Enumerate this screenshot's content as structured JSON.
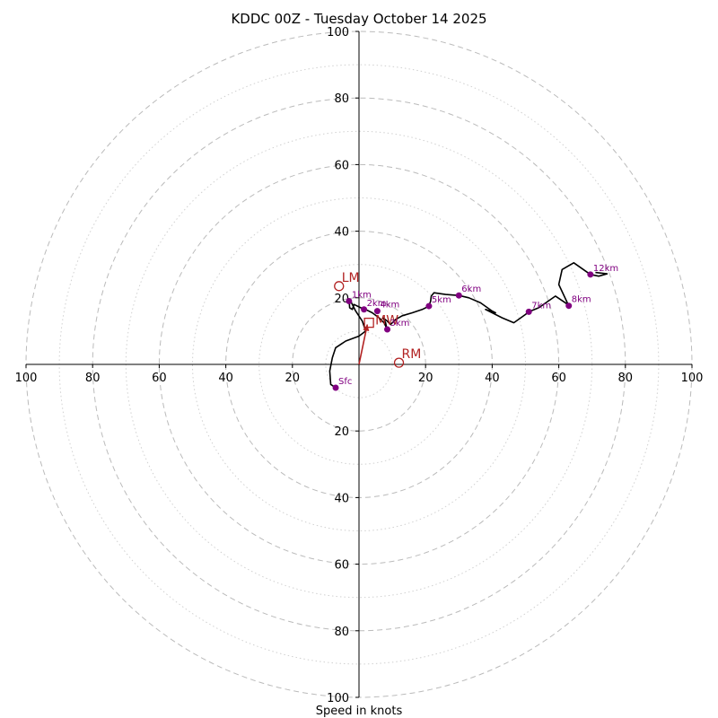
{
  "chart_data": {
    "type": "hodograph",
    "title": "KDDC 00Z - Tuesday October 14 2025",
    "xlabel": "Speed in knots",
    "range": 100,
    "major_rings": [
      20,
      40,
      60,
      80,
      100
    ],
    "minor_rings": [
      10,
      30,
      50,
      70,
      90
    ],
    "x_ticks": [
      {
        "v": -100,
        "label": "100"
      },
      {
        "v": -80,
        "label": "80"
      },
      {
        "v": -60,
        "label": "60"
      },
      {
        "v": -40,
        "label": "40"
      },
      {
        "v": -20,
        "label": "20"
      },
      {
        "v": 20,
        "label": "20"
      },
      {
        "v": 40,
        "label": "40"
      },
      {
        "v": 60,
        "label": "60"
      },
      {
        "v": 80,
        "label": "80"
      },
      {
        "v": 100,
        "label": "100"
      }
    ],
    "y_ticks": [
      {
        "v": 100,
        "label": "100"
      },
      {
        "v": 80,
        "label": "80"
      },
      {
        "v": 60,
        "label": "60"
      },
      {
        "v": 40,
        "label": "40"
      },
      {
        "v": 20,
        "label": "20"
      },
      {
        "v": -20,
        "label": "20"
      },
      {
        "v": -40,
        "label": "40"
      },
      {
        "v": -60,
        "label": "60"
      },
      {
        "v": -80,
        "label": "80"
      },
      {
        "v": -100,
        "label": "100"
      }
    ],
    "trace_color": "#000000",
    "trace": [
      [
        -7,
        -7
      ],
      [
        -8.5,
        -6
      ],
      [
        -8.8,
        -2
      ],
      [
        -8,
        2
      ],
      [
        -7,
        5
      ],
      [
        -4,
        7
      ],
      [
        0,
        8.5
      ],
      [
        2,
        10
      ],
      [
        1,
        13
      ],
      [
        -1,
        16
      ],
      [
        -2.5,
        19
      ],
      [
        -3,
        19.5
      ],
      [
        -2.8,
        17
      ],
      [
        -2,
        16.5
      ],
      [
        -1.5,
        18
      ],
      [
        0.5,
        17
      ],
      [
        2,
        16.5
      ],
      [
        4,
        15.5
      ],
      [
        6,
        14
      ],
      [
        7.5,
        12.5
      ],
      [
        8,
        11.5
      ],
      [
        8.5,
        10
      ],
      [
        8,
        12.5
      ],
      [
        7.2,
        14
      ],
      [
        8.5,
        13
      ],
      [
        9.5,
        12
      ],
      [
        11,
        13.5
      ],
      [
        13,
        14.6
      ],
      [
        16,
        15.5
      ],
      [
        19,
        16.5
      ],
      [
        21,
        17.5
      ],
      [
        21.5,
        19
      ],
      [
        21.7,
        20.5
      ],
      [
        22.5,
        21.5
      ],
      [
        26,
        21
      ],
      [
        30,
        20.7
      ],
      [
        33,
        20
      ],
      [
        36.5,
        18.5
      ],
      [
        40,
        16
      ],
      [
        41,
        15.5
      ],
      [
        38,
        16.5
      ],
      [
        43,
        14
      ],
      [
        46.5,
        12.5
      ],
      [
        50,
        15
      ],
      [
        51,
        15.8
      ],
      [
        54,
        17
      ],
      [
        59,
        20.5
      ],
      [
        62,
        18.5
      ],
      [
        63,
        17.6
      ],
      [
        60,
        24
      ],
      [
        61,
        28.5
      ],
      [
        64.5,
        30.5
      ],
      [
        69.5,
        27
      ],
      [
        72,
        26.5
      ],
      [
        74.5,
        27.2
      ],
      [
        71,
        27.6
      ]
    ],
    "height_markers": [
      {
        "label": "Sfc",
        "u": -7,
        "v": -7
      },
      {
        "label": "1km",
        "u": -3,
        "v": 19
      },
      {
        "label": "2km",
        "u": 1.5,
        "v": 16.5
      },
      {
        "label": "3km",
        "u": 8.5,
        "v": 10.5
      },
      {
        "label": "4km",
        "u": 5.5,
        "v": 16
      },
      {
        "label": "5km",
        "u": 21,
        "v": 17.5
      },
      {
        "label": "6km",
        "u": 30,
        "v": 20.7
      },
      {
        "label": "7km",
        "u": 51,
        "v": 15.8
      },
      {
        "label": "8km",
        "u": 63,
        "v": 17.6
      },
      {
        "label": "12km",
        "u": 69.5,
        "v": 27
      }
    ],
    "marker_color": "#800080",
    "motion_color": "#b22222",
    "storm_motion": [
      {
        "label": "LM",
        "u": -6,
        "v": 23.5
      },
      {
        "label": "RM",
        "u": 12,
        "v": 0.5
      }
    ],
    "mean_wind_label": "MW",
    "mean_wind": {
      "u": 3,
      "v": 12.5
    },
    "mean_wind_arrow": {
      "u": 2.5,
      "v": 12
    }
  }
}
